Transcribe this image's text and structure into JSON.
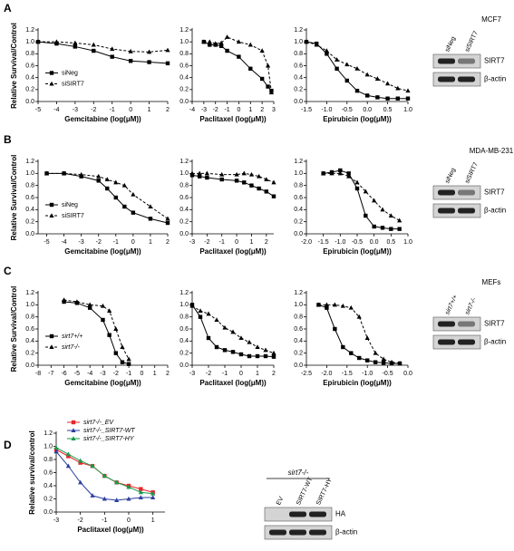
{
  "panel_labels": [
    "A",
    "B",
    "C",
    "D"
  ],
  "chart_data": [
    {
      "type": "line",
      "ylabel": "Relative Survival/Control",
      "xlabel": "Gemcitabine (log(μM))",
      "xlim": [
        -5,
        2
      ],
      "xticks": [
        -5,
        -4,
        -3,
        -2,
        -1,
        0,
        1,
        2
      ],
      "ylim": [
        0,
        1.2
      ],
      "yticks": [
        {
          "value": 0,
          "label": "0.0"
        },
        0.2,
        0.4,
        0.6,
        0.8,
        {
          "value": 1,
          "label": "1.0"
        },
        1.2
      ],
      "legend": "left",
      "x": [
        -5,
        -4,
        -3,
        -2,
        -1,
        0,
        1,
        2
      ],
      "series": [
        {
          "name": "siNeg",
          "color": "#000000",
          "marker": "square",
          "dashed": false,
          "values": [
            1.0,
            0.97,
            0.92,
            0.85,
            0.75,
            0.68,
            0.66,
            0.64
          ]
        },
        {
          "name": "siSIRT7",
          "color": "#000000",
          "marker": "triangle",
          "dashed": true,
          "values": [
            1.0,
            1.0,
            0.98,
            0.95,
            0.88,
            0.84,
            0.83,
            0.86
          ]
        }
      ]
    },
    {
      "type": "line",
      "xlabel": "Paclitaxel (log(μM))",
      "xlim": [
        -4,
        3
      ],
      "xticks": [
        -4,
        -3,
        -2,
        -1,
        0,
        1,
        2,
        3
      ],
      "ylim": [
        0,
        1.2
      ],
      "yticks": [
        {
          "value": 0,
          "label": "0.0"
        },
        0.2,
        0.4,
        0.6,
        0.8,
        {
          "value": 1,
          "label": "1.0"
        },
        1.2
      ],
      "x": [
        -3,
        -2.5,
        -2,
        -1.5,
        -1,
        0,
        1,
        2,
        2.5,
        2.8
      ],
      "series": [
        {
          "name": "siNeg",
          "color": "#000000",
          "marker": "square",
          "dashed": false,
          "values": [
            1.0,
            0.95,
            0.95,
            0.93,
            0.85,
            0.75,
            0.55,
            0.38,
            0.25,
            0.18
          ]
        },
        {
          "name": "siSIRT7",
          "color": "#000000",
          "marker": "triangle",
          "dashed": true,
          "values": [
            1.0,
            1.0,
            0.97,
            0.98,
            1.08,
            1.0,
            0.95,
            0.85,
            0.6,
            0.15
          ]
        }
      ]
    },
    {
      "type": "line",
      "xlabel": "Epirubicin (log(μM))",
      "xlim": [
        -1.5,
        1
      ],
      "xticks": [
        -1.5,
        {
          "value": -1,
          "label": "-1.0"
        },
        -0.5,
        {
          "value": 0,
          "label": "0.0"
        },
        0.5,
        {
          "value": 1,
          "label": "1.0"
        }
      ],
      "ylim": [
        0,
        1.2
      ],
      "yticks": [
        {
          "value": 0,
          "label": "0.0"
        },
        0.2,
        0.4,
        0.6,
        0.8,
        {
          "value": 1,
          "label": "1.0"
        },
        1.2
      ],
      "x": [
        -1.5,
        -1.25,
        -1,
        -0.75,
        -0.5,
        -0.25,
        0,
        0.25,
        0.5,
        0.75,
        1
      ],
      "series": [
        {
          "name": "siNeg",
          "color": "#000000",
          "marker": "square",
          "dashed": false,
          "values": [
            1.0,
            0.97,
            0.8,
            0.55,
            0.35,
            0.18,
            0.1,
            0.07,
            0.05,
            0.05,
            0.05
          ]
        },
        {
          "name": "siSIRT7",
          "color": "#000000",
          "marker": "triangle",
          "dashed": true,
          "values": [
            1.0,
            0.95,
            0.85,
            0.7,
            0.62,
            0.55,
            0.45,
            0.38,
            0.3,
            0.22,
            0.18
          ]
        }
      ]
    },
    {
      "type": "line",
      "ylabel": "Relative Survival/Control",
      "xlabel": "Gemcitabine (log(μM))",
      "xlim": [
        -5.5,
        2
      ],
      "xticks": [
        -5,
        -4,
        -3,
        -2,
        -1,
        0,
        1,
        2
      ],
      "ylim": [
        0,
        1.2
      ],
      "yticks": [
        {
          "value": 0,
          "label": "0.0"
        },
        0.2,
        0.4,
        0.6,
        0.8,
        {
          "value": 1,
          "label": "1.0"
        },
        1.2
      ],
      "legend": "left",
      "x": [
        -5,
        -4,
        -3,
        -2,
        -1.5,
        -1,
        -0.5,
        0,
        1,
        2
      ],
      "series": [
        {
          "name": "siNeg",
          "color": "#000000",
          "marker": "square",
          "dashed": false,
          "values": [
            1.0,
            1.0,
            0.95,
            0.88,
            0.75,
            0.6,
            0.45,
            0.35,
            0.25,
            0.18
          ]
        },
        {
          "name": "siSIRT7",
          "color": "#000000",
          "marker": "triangle",
          "dashed": true,
          "values": [
            1.0,
            1.0,
            0.98,
            0.95,
            0.9,
            0.85,
            0.8,
            0.65,
            0.45,
            0.25
          ]
        }
      ]
    },
    {
      "type": "line",
      "xlabel": "Paclitaxel (log(μM))",
      "xlim": [
        -3,
        2.5
      ],
      "xticks": [
        -3,
        -2,
        -1,
        0,
        1,
        2
      ],
      "ylim": [
        0,
        1.2
      ],
      "yticks": [
        {
          "value": 0,
          "label": "0.0"
        },
        0.2,
        0.4,
        0.6,
        0.8,
        {
          "value": 1,
          "label": "1.0"
        },
        1.2
      ],
      "x": [
        -3,
        -2.5,
        -2,
        -1,
        0,
        0.5,
        1,
        1.5,
        2,
        2.5
      ],
      "series": [
        {
          "name": "siNeg",
          "color": "#000000",
          "marker": "square",
          "dashed": false,
          "values": [
            0.97,
            0.95,
            0.93,
            0.9,
            0.88,
            0.85,
            0.8,
            0.75,
            0.7,
            0.62
          ]
        },
        {
          "name": "siSIRT7",
          "color": "#000000",
          "marker": "triangle",
          "dashed": true,
          "values": [
            1.0,
            1.0,
            1.0,
            0.98,
            0.98,
            1.0,
            0.98,
            0.95,
            0.9,
            0.85
          ]
        }
      ]
    },
    {
      "type": "line",
      "xlabel": "Epirubicin (log(μM))",
      "xlim": [
        -2,
        1
      ],
      "xticks": [
        {
          "value": -2,
          "label": "-2.0"
        },
        -1.5,
        {
          "value": -1,
          "label": "-1.0"
        },
        -0.5,
        {
          "value": 0,
          "label": "0.0"
        },
        0.5,
        {
          "value": 1,
          "label": "1.0"
        }
      ],
      "ylim": [
        0,
        1.2
      ],
      "yticks": [
        {
          "value": 0,
          "label": "0.0"
        },
        0.2,
        0.4,
        0.6,
        0.8,
        {
          "value": 1,
          "label": "1.0"
        },
        1.2
      ],
      "x": [
        -1.5,
        -1.25,
        -1,
        -0.75,
        -0.5,
        -0.25,
        0,
        0.25,
        0.5,
        0.75
      ],
      "series": [
        {
          "name": "siNeg",
          "color": "#000000",
          "marker": "square",
          "dashed": false,
          "values": [
            1.0,
            1.02,
            1.05,
            1.0,
            0.75,
            0.3,
            0.12,
            0.1,
            0.08,
            0.08
          ]
        },
        {
          "name": "siSIRT7",
          "color": "#000000",
          "marker": "triangle",
          "dashed": true,
          "values": [
            1.0,
            1.0,
            1.0,
            0.95,
            0.85,
            0.7,
            0.55,
            0.4,
            0.3,
            0.22
          ]
        }
      ]
    },
    {
      "type": "line",
      "ylabel": "Relative Survival/Control",
      "xlabel": "Gemcitabine (log(μM))",
      "xlim": [
        -8,
        2
      ],
      "xticks": [
        -8,
        -7,
        -6,
        -5,
        -4,
        -3,
        -2,
        -1,
        0,
        1,
        2
      ],
      "ylim": [
        0,
        1.2
      ],
      "yticks": [
        {
          "value": 0,
          "label": "0.0"
        },
        0.2,
        0.4,
        0.6,
        0.8,
        {
          "value": 1,
          "label": "1.0"
        },
        1.2
      ],
      "legend": "left",
      "x": [
        -6,
        -5,
        -4,
        -3,
        -2.5,
        -2,
        -1.5,
        -1
      ],
      "series": [
        {
          "name": "sirt7+/+",
          "color": "#000000",
          "marker": "square",
          "dashed": false,
          "values": [
            1.05,
            1.03,
            0.95,
            0.75,
            0.5,
            0.2,
            0.05,
            0.02
          ]
        },
        {
          "name": "sirt7-/-",
          "color": "#000000",
          "marker": "triangle",
          "dashed": true,
          "values": [
            1.08,
            1.05,
            1.0,
            0.98,
            0.9,
            0.6,
            0.3,
            0.1
          ]
        }
      ]
    },
    {
      "type": "line",
      "xlabel": "Paclitaxel (log(μM))",
      "xlim": [
        -3,
        2
      ],
      "xticks": [
        -3,
        -2,
        -1,
        0,
        1,
        2
      ],
      "ylim": [
        0,
        1.2
      ],
      "yticks": [
        {
          "value": 0,
          "label": "0.0"
        },
        0.2,
        0.4,
        0.6,
        0.8,
        {
          "value": 1,
          "label": "1.0"
        },
        1.2
      ],
      "x": [
        -3,
        -2.5,
        -2,
        -1.5,
        -1,
        -0.5,
        0,
        0.5,
        1,
        1.5,
        2
      ],
      "series": [
        {
          "name": "sirt7+/+",
          "color": "#000000",
          "marker": "square",
          "dashed": false,
          "values": [
            1.0,
            0.8,
            0.45,
            0.3,
            0.25,
            0.22,
            0.18,
            0.15,
            0.15,
            0.15,
            0.14
          ]
        },
        {
          "name": "sirt7-/-",
          "color": "#000000",
          "marker": "triangle",
          "dashed": true,
          "values": [
            0.98,
            0.9,
            0.85,
            0.75,
            0.62,
            0.55,
            0.45,
            0.38,
            0.3,
            0.25,
            0.2
          ]
        }
      ]
    },
    {
      "type": "line",
      "xlabel": "Epirubicin (log(μM))",
      "xlim": [
        -2.5,
        0
      ],
      "xticks": [
        -2.5,
        {
          "value": -2,
          "label": "-2.0"
        },
        -1.5,
        {
          "value": -1,
          "label": "-1.0"
        },
        -0.5,
        {
          "value": 0,
          "label": "0.0"
        }
      ],
      "ylim": [
        0,
        1.2
      ],
      "yticks": [
        {
          "value": 0,
          "label": "0.0"
        },
        0.2,
        0.4,
        0.6,
        0.8,
        {
          "value": 1,
          "label": "1.0"
        },
        1.2
      ],
      "x": [
        -2.2,
        -2,
        -1.8,
        -1.6,
        -1.4,
        -1.2,
        -1,
        -0.8,
        -0.6,
        -0.4,
        -0.2
      ],
      "series": [
        {
          "name": "sirt7+/+",
          "color": "#000000",
          "marker": "square",
          "dashed": false,
          "values": [
            1.0,
            0.95,
            0.6,
            0.3,
            0.2,
            0.12,
            0.08,
            0.05,
            0.04,
            0.03,
            0.03
          ]
        },
        {
          "name": "sirt7-/-",
          "color": "#000000",
          "marker": "triangle",
          "dashed": true,
          "values": [
            1.0,
            1.0,
            1.0,
            0.98,
            0.95,
            0.8,
            0.45,
            0.2,
            0.1,
            0.05,
            0.03
          ]
        }
      ]
    },
    {
      "type": "line",
      "ylabel": "Relative survival/control",
      "xlabel": "Paclitaxel (log(μM))",
      "xlim": [
        -3,
        1.5
      ],
      "xticks": [
        -3,
        -2,
        -1,
        0,
        1
      ],
      "ylim": [
        0,
        1.2
      ],
      "yticks": [
        {
          "value": 0,
          "label": "0.0"
        },
        0.2,
        0.4,
        0.6,
        0.8,
        {
          "value": 1,
          "label": "1.0"
        },
        1.2
      ],
      "legend": "top",
      "x": [
        -3,
        -2.5,
        -2,
        -1.5,
        -1,
        -0.5,
        0,
        0.5,
        1
      ],
      "series": [
        {
          "name": "sirt7-/-_EV",
          "color": "#e8262a",
          "marker": "square",
          "dashed": false,
          "values": [
            0.95,
            0.85,
            0.75,
            0.7,
            0.55,
            0.45,
            0.4,
            0.35,
            0.3
          ]
        },
        {
          "name": "sirt7-/-_SIRT7-WT",
          "color": "#2b3f9e",
          "marker": "triangle",
          "dashed": false,
          "values": [
            0.92,
            0.7,
            0.45,
            0.25,
            0.2,
            0.18,
            0.2,
            0.22,
            0.22
          ]
        },
        {
          "name": "sirt7-/-_SIRT7-HY",
          "color": "#1a9a4a",
          "marker": "triangle",
          "dashed": false,
          "values": [
            0.98,
            0.88,
            0.78,
            0.7,
            0.55,
            0.45,
            0.38,
            0.3,
            0.28
          ]
        }
      ]
    }
  ],
  "blots": [
    {
      "title": "MCF7",
      "lanes": [
        "siNeg",
        "siSIRT7"
      ],
      "rows": [
        "SIRT7",
        "β-actin"
      ]
    },
    {
      "title": "MDA-MB-231",
      "lanes": [
        "siNeg",
        "siSIRT7"
      ],
      "rows": [
        "SIRT7",
        "β-actin"
      ]
    },
    {
      "title": "MEFs",
      "lanes": [
        "sirt7+/+",
        "sirt7-/-"
      ],
      "rows": [
        "SIRT7",
        "β-actin"
      ]
    },
    {
      "title": "sirt7-/-",
      "lanes": [
        "EV",
        "SIRT7-WT",
        "SIRT7-HY"
      ],
      "rows": [
        "HA",
        "β-actin"
      ]
    }
  ]
}
